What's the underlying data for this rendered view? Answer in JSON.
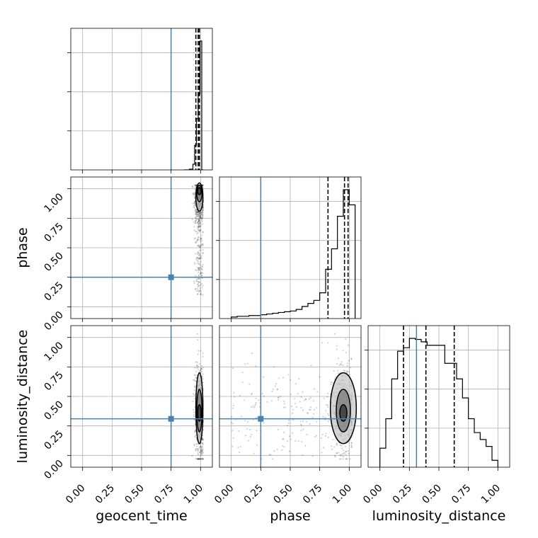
{
  "chart_data": {
    "type": "corner",
    "parameters": [
      "geocent_time",
      "phase",
      "luminosity_distance"
    ],
    "axis_labels": [
      "geocent_time",
      "phase",
      "luminosity_distance"
    ],
    "ylim_all": [
      -0.1,
      1.1
    ],
    "ticks": [
      0.0,
      0.25,
      0.5,
      0.75,
      1.0
    ],
    "tick_labels": [
      "0.00",
      "0.25",
      "0.50",
      "0.75",
      "1.00"
    ],
    "grid": true,
    "truths": [
      0.75,
      0.25,
      0.31
    ],
    "truth_color": "#4682b4",
    "histograms": [
      {
        "parameter": "geocent_time",
        "bin_edges": [
          0.86,
          0.875,
          0.89,
          0.905,
          0.92,
          0.935,
          0.95,
          0.965,
          0.98,
          0.995,
          1.01,
          1.025
        ],
        "counts": [
          0,
          0,
          0,
          0.02,
          0.02,
          0.15,
          0.65,
          1.35,
          2.0,
          3.4,
          0
        ],
        "quantiles": [
          0.96,
          0.98,
          0.99
        ]
      },
      {
        "parameter": "phase",
        "bin_edges": [
          0.0,
          0.05,
          0.1,
          0.15,
          0.2,
          0.25,
          0.3,
          0.35,
          0.4,
          0.45,
          0.5,
          0.55,
          0.6,
          0.65,
          0.7,
          0.75,
          0.8,
          0.85,
          0.9,
          0.95,
          1.0,
          1.05
        ],
        "counts": [
          0.2,
          0.3,
          0.3,
          0.4,
          0.4,
          0.5,
          0.6,
          0.7,
          0.8,
          0.9,
          1.0,
          1.2,
          1.6,
          2.0,
          2.4,
          3.4,
          6.5,
          9.2,
          13.5,
          17.0,
          15.0
        ],
        "quantiles": [
          0.82,
          0.96,
          0.99
        ]
      },
      {
        "parameter": "luminosity_distance",
        "bin_edges": [
          0.0,
          0.05,
          0.1,
          0.15,
          0.2,
          0.25,
          0.3,
          0.35,
          0.4,
          0.45,
          0.5,
          0.55,
          0.6,
          0.65,
          0.7,
          0.75,
          0.8,
          0.85,
          0.9,
          0.95,
          1.0
        ],
        "counts": [
          55,
          140,
          255,
          335,
          345,
          372,
          369,
          362,
          352,
          352,
          352,
          300,
          300,
          255,
          200,
          140,
          100,
          80,
          60,
          20
        ],
        "quantiles": [
          0.2,
          0.39,
          0.63
        ]
      }
    ],
    "scatter_panels": [
      {
        "x": "geocent_time",
        "y": "phase",
        "center": [
          0.99,
          0.92
        ],
        "spread": [
          0.02,
          0.09
        ],
        "tail": "y-low",
        "contours": [
          {
            "rx": 0.015,
            "ry": 0.03,
            "cy": 0.98
          },
          {
            "rx": 0.022,
            "ry": 0.07,
            "cy": 0.96
          },
          {
            "rx": 0.03,
            "ry": 0.12,
            "cy": 0.93
          }
        ]
      },
      {
        "x": "geocent_time",
        "y": "luminosity_distance",
        "center": [
          0.99,
          0.36
        ],
        "spread": [
          0.02,
          0.2
        ],
        "tail": "none",
        "contours": [
          {
            "rx": 0.014,
            "ry": 0.07,
            "cy": 0.36
          },
          {
            "rx": 0.022,
            "ry": 0.18,
            "cy": 0.38
          },
          {
            "rx": 0.03,
            "ry": 0.3,
            "cy": 0.4
          }
        ]
      },
      {
        "x": "phase",
        "y": "luminosity_distance",
        "center": [
          0.95,
          0.38
        ],
        "spread": [
          0.05,
          0.2
        ],
        "tail": "x-low",
        "contours": [
          {
            "rx": 0.03,
            "ry": 0.07,
            "cy": 0.36
          },
          {
            "rx": 0.06,
            "ry": 0.18,
            "cy": 0.38
          },
          {
            "rx": 0.11,
            "ry": 0.3,
            "cy": 0.4
          }
        ]
      }
    ]
  }
}
